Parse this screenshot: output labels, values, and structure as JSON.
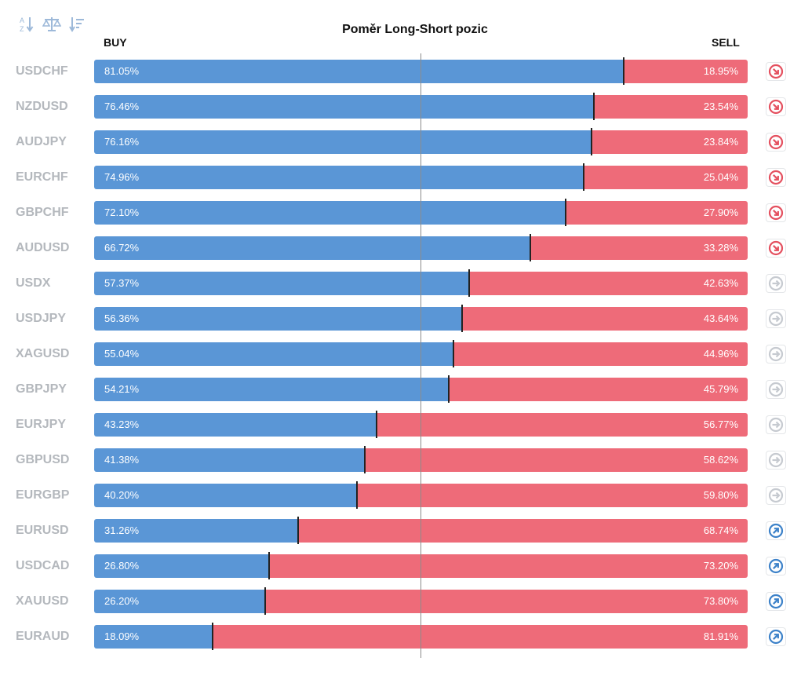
{
  "chart_data": {
    "type": "bar",
    "title": "Poměr Long-Short pozic",
    "buy_label": "BUY",
    "sell_label": "SELL",
    "categories": [
      "USDCHF",
      "NZDUSD",
      "AUDJPY",
      "EURCHF",
      "GBPCHF",
      "AUDUSD",
      "USDX",
      "USDJPY",
      "XAGUSD",
      "GBPJPY",
      "EURJPY",
      "GBPUSD",
      "EURGBP",
      "EURUSD",
      "USDCAD",
      "XAUUSD",
      "EURAUD"
    ],
    "series": [
      {
        "name": "BUY",
        "values": [
          81.05,
          76.46,
          76.16,
          74.96,
          72.1,
          66.72,
          57.37,
          56.36,
          55.04,
          54.21,
          43.23,
          41.38,
          40.2,
          31.26,
          26.8,
          26.2,
          18.09
        ]
      },
      {
        "name": "SELL",
        "values": [
          18.95,
          23.54,
          23.84,
          25.04,
          27.9,
          33.28,
          42.63,
          43.64,
          44.96,
          45.79,
          56.77,
          58.62,
          59.8,
          68.74,
          73.2,
          73.8,
          81.91
        ]
      }
    ],
    "buy_text": [
      "81.05%",
      "76.46%",
      "76.16%",
      "74.96%",
      "72.10%",
      "66.72%",
      "57.37%",
      "56.36%",
      "55.04%",
      "54.21%",
      "43.23%",
      "41.38%",
      "40.20%",
      "31.26%",
      "26.80%",
      "26.20%",
      "18.09%"
    ],
    "sell_text": [
      "18.95%",
      "23.54%",
      "23.84%",
      "25.04%",
      "27.90%",
      "33.28%",
      "42.63%",
      "43.64%",
      "44.96%",
      "45.79%",
      "56.77%",
      "58.62%",
      "59.80%",
      "68.74%",
      "73.20%",
      "73.80%",
      "81.91%"
    ],
    "signals": [
      "down",
      "down",
      "down",
      "down",
      "down",
      "down",
      "neutral",
      "neutral",
      "neutral",
      "neutral",
      "neutral",
      "neutral",
      "neutral",
      "up",
      "up",
      "up",
      "up"
    ],
    "xlim": [
      0,
      100
    ],
    "stacked": true,
    "orientation": "horizontal",
    "center_line_at": 50
  },
  "toolbar": {
    "icons": [
      "sort-alpha-icon",
      "balance-icon",
      "sort-amount-icon"
    ]
  },
  "colors": {
    "buy": "#5a96d6",
    "sell": "#ee6b79",
    "signal_down": "#e4505f",
    "signal_up": "#3d82c9",
    "signal_neutral": "#c6cad0",
    "pair_text": "#b4b8bd",
    "toolbar_icon": "#9db9d9"
  }
}
